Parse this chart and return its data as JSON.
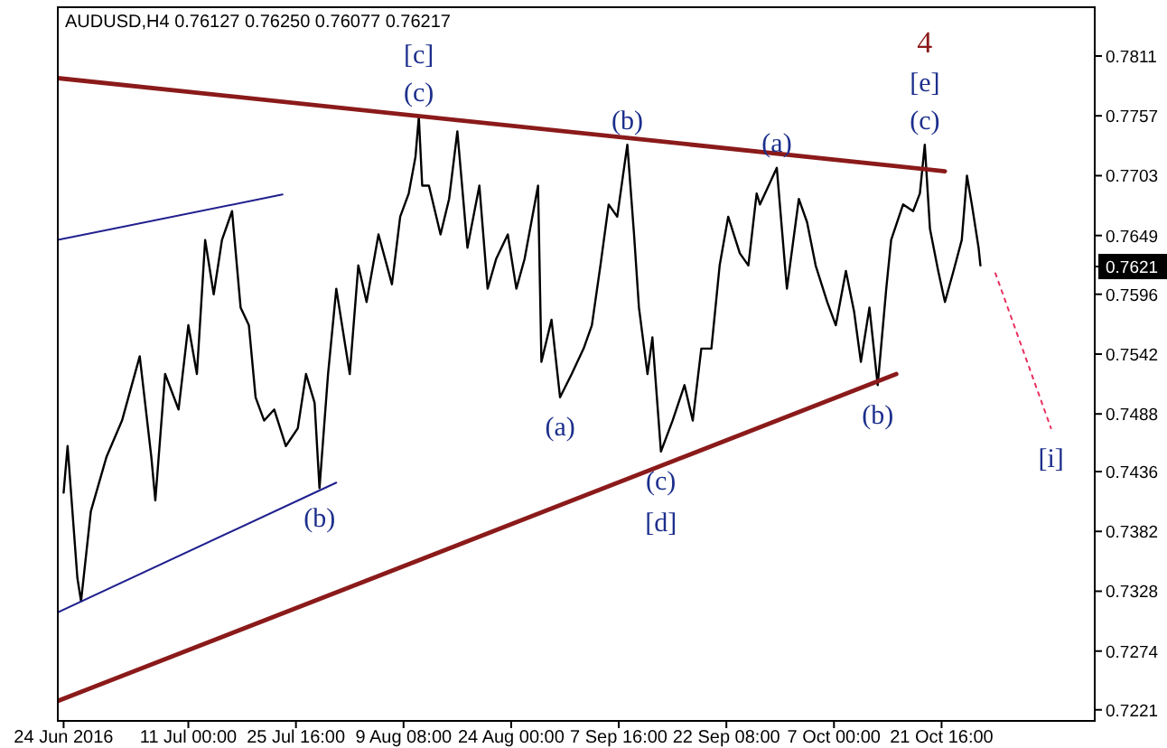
{
  "chart_data": {
    "type": "line",
    "title": "AUDUSD,H4  0.76127 0.76250 0.76077 0.76217",
    "xlim": [
      "2016-06-23T05:00",
      "2016-11-11T13:00"
    ],
    "xticks": [
      {
        "value": "2016-06-24",
        "label": "24 Jun 2016"
      },
      {
        "value": "2016-07-11T00:00",
        "label": "11 Jul 00:00"
      },
      {
        "value": "2016-07-25T16:00",
        "label": "25 Jul 16:00"
      },
      {
        "value": "2016-08-09T08:00",
        "label": "9 Aug 08:00"
      },
      {
        "value": "2016-08-24T00:00",
        "label": "24 Aug 00:00"
      },
      {
        "value": "2016-09-07T16:00",
        "label": "7 Sep 16:00"
      },
      {
        "value": "2016-09-22T08:00",
        "label": "22 Sep 08:00"
      },
      {
        "value": "2016-10-07T00:00",
        "label": "7 Oct 00:00"
      },
      {
        "value": "2016-10-21T16:00",
        "label": "21 Oct 16:00"
      }
    ],
    "ylim": [
      0.7211,
      0.7855
    ],
    "yticks": [
      0.7221,
      0.7274,
      0.7328,
      0.7382,
      0.7436,
      0.7488,
      0.7542,
      0.7596,
      {
        "value": 0.7621,
        "label": "0.7621"
      },
      0.7649,
      0.7703,
      0.7757,
      0.7811
    ],
    "grid": false,
    "marker": "none",
    "series": [
      {
        "color": "#000000",
        "line_style": "solid",
        "x": [
          "2016-06-24T00:00",
          "2016-06-24T13:00",
          "2016-06-25T21:00",
          "2016-06-26T09:00",
          "2016-06-27T17:00",
          "2016-06-29T20:00",
          "2016-07-01T23:00",
          "2016-07-04T09:00",
          "2016-07-05T23:00",
          "2016-07-06T12:00",
          "2016-07-07T20:00",
          "2016-07-09T16:00",
          "2016-07-11T00:00",
          "2016-07-12T04:00",
          "2016-07-13T07:00",
          "2016-07-14T11:00",
          "2016-07-15T14:00",
          "2016-07-16T23:00",
          "2016-07-18T03:00",
          "2016-07-19T06:00",
          "2016-07-20T04:00",
          "2016-07-21T08:00",
          "2016-07-22T17:00",
          "2016-07-24T07:00",
          "2016-07-25T22:00",
          "2016-07-27T01:00",
          "2016-07-28T05:00",
          "2016-07-28T21:00",
          "2016-07-30T01:00",
          "2016-07-31T04:00",
          "2016-08-02T00:00",
          "2016-08-03T04:00",
          "2016-08-04T07:00",
          "2016-08-05T22:00",
          "2016-08-07T18:00",
          "2016-08-08T21:00",
          "2016-08-10T01:00",
          "2016-08-10T23:00",
          "2016-08-11T10:00",
          "2016-08-11T21:00",
          "2016-08-12T19:00",
          "2016-08-14T09:00",
          "2016-08-15T13:00",
          "2016-08-16T16:00",
          "2016-08-18T01:00",
          "2016-08-19T16:00",
          "2016-08-20T19:00",
          "2016-08-21T23:00",
          "2016-08-23T13:00",
          "2016-08-24T17:00",
          "2016-08-25T20:00",
          "2016-08-27T16:00",
          "2016-08-28T03:00",
          "2016-08-29T12:00",
          "2016-08-30T16:00",
          "2016-09-01T06:00",
          "2016-09-02T21:00",
          "2016-09-04T00:00",
          "2016-09-05T04:00",
          "2016-09-06T07:00",
          "2016-09-07T11:00",
          "2016-09-08T20:00",
          "2016-09-09T18:00",
          "2016-09-10T10:00",
          "2016-09-11T14:00",
          "2016-09-12T06:00",
          "2016-09-13T10:00",
          "2016-09-15T00:00",
          "2016-09-16T15:00",
          "2016-09-17T18:00",
          "2016-09-18T22:00",
          "2016-09-20T07:00",
          "2016-09-21T10:00",
          "2016-09-22T14:00",
          "2016-09-24T04:00",
          "2016-09-25T08:00",
          "2016-09-26T11:00",
          "2016-09-26T22:00",
          "2016-09-29T05:00",
          "2016-09-30T14:00",
          "2016-10-02T05:00",
          "2016-10-03T08:00",
          "2016-10-04T12:00",
          "2016-10-06T02:00",
          "2016-10-07T06:00",
          "2016-10-08T15:00",
          "2016-10-09T18:00",
          "2016-10-10T16:00",
          "2016-10-11T20:00",
          "2016-10-12T23:00",
          "2016-10-14T03:00",
          "2016-10-14T19:00",
          "2016-10-16T10:00",
          "2016-10-17T19:00",
          "2016-10-18T17:00",
          "2016-10-19T09:00",
          "2016-10-20T02:00",
          "2016-10-21T05:00",
          "2016-10-22T03:00",
          "2016-10-23T07:00",
          "2016-10-24T10:00",
          "2016-10-25T03:00",
          "2016-10-25T19:00",
          "2016-10-26T17:00",
          "2016-10-26T23:00"
        ],
        "values": [
          0.7417,
          0.7459,
          0.734,
          0.7319,
          0.74,
          0.7449,
          0.7482,
          0.754,
          0.7449,
          0.741,
          0.7524,
          0.7492,
          0.7568,
          0.7524,
          0.7645,
          0.7596,
          0.7645,
          0.7671,
          0.7584,
          0.7568,
          0.7503,
          0.7482,
          0.7492,
          0.7459,
          0.7475,
          0.7524,
          0.7498,
          0.7421,
          0.7524,
          0.7601,
          0.7524,
          0.7622,
          0.7589,
          0.765,
          0.7605,
          0.7666,
          0.7687,
          0.772,
          0.7756,
          0.7694,
          0.7694,
          0.765,
          0.7682,
          0.7743,
          0.7638,
          0.7694,
          0.7601,
          0.7628,
          0.765,
          0.7601,
          0.7628,
          0.7694,
          0.7535,
          0.7573,
          0.7503,
          0.7524,
          0.7547,
          0.7568,
          0.7622,
          0.7677,
          0.7666,
          0.7731,
          0.765,
          0.7584,
          0.7524,
          0.7557,
          0.7454,
          0.7482,
          0.7514,
          0.7482,
          0.7547,
          0.7547,
          0.7622,
          0.7666,
          0.7633,
          0.7622,
          0.7687,
          0.7677,
          0.771,
          0.7601,
          0.7682,
          0.7661,
          0.7622,
          0.7589,
          0.7568,
          0.7617,
          0.758,
          0.7535,
          0.7584,
          0.7514,
          0.7601,
          0.7645,
          0.7677,
          0.7671,
          0.7687,
          0.7731,
          0.7655,
          0.7617,
          0.7589,
          0.7617,
          0.7645,
          0.7703,
          0.7677,
          0.7638,
          0.7622
        ]
      },
      {
        "color": "#8b1a1a",
        "line_style": "solid",
        "x": [
          "2016-06-23T05:00",
          "2016-10-22T03:00"
        ],
        "values": [
          0.7791,
          0.7707
        ]
      },
      {
        "color": "#8b1a1a",
        "line_style": "solid",
        "x": [
          "2016-06-23T05:00",
          "2016-10-15T12:00"
        ],
        "values": [
          0.7229,
          0.7524
        ]
      },
      {
        "color": "#1f1f8f",
        "line_style": "solid",
        "x": [
          "2016-06-23T05:00",
          "2016-07-23T20:00"
        ],
        "values": [
          0.7645,
          0.7686
        ]
      },
      {
        "color": "#1f1f8f",
        "line_style": "solid",
        "x": [
          "2016-06-23T05:00",
          "2016-07-31T04:00"
        ],
        "values": [
          0.7309,
          0.7426
        ]
      },
      {
        "color": "#e8305f",
        "line_style": "dotted",
        "x": [
          "2016-10-29T00:00",
          "2016-11-05T14:00"
        ],
        "values": [
          0.7615,
          0.7475
        ]
      }
    ],
    "annotations": [
      {
        "text": "[c]",
        "x": "2016-08-11T10:00",
        "y": 0.7756
      },
      {
        "text": "(c)",
        "x": "2016-08-11T10:00",
        "y": 0.7756
      },
      {
        "text": "(b)",
        "x": "2016-09-08T20:00",
        "y": 0.7731
      },
      {
        "text": "(a)",
        "x": "2016-09-29T05:00",
        "y": 0.771
      },
      "4",
      {
        "text": "[e]",
        "x": "2016-10-19T09:00",
        "y": 0.7731
      },
      {
        "text": "(c)",
        "x": "2016-10-19T09:00",
        "y": 0.7731
      },
      {
        "text": "(b)",
        "x": "2016-07-28T21:00",
        "y": 0.7421
      },
      {
        "text": "(a)",
        "x": "2016-08-30T16:00",
        "y": 0.7503
      },
      {
        "text": "(c)",
        "x": "2016-09-13T10:00",
        "y": 0.7454
      },
      {
        "text": "[d]",
        "x": "2016-09-13T10:00",
        "y": 0.7454
      },
      {
        "text": "(b)",
        "x": "2016-10-12T23:00",
        "y": 0.7514
      },
      {
        "text": "[i]",
        "x": "2016-11-05T14:00",
        "y": 0.7475
      }
    ]
  }
}
